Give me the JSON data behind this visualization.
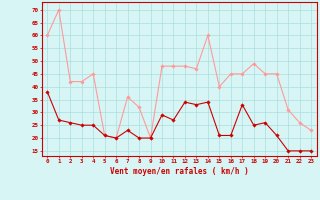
{
  "x": [
    0,
    1,
    2,
    3,
    4,
    5,
    6,
    7,
    8,
    9,
    10,
    11,
    12,
    13,
    14,
    15,
    16,
    17,
    18,
    19,
    20,
    21,
    22,
    23
  ],
  "rafales": [
    60,
    70,
    42,
    42,
    45,
    21,
    20,
    36,
    32,
    20,
    48,
    48,
    48,
    47,
    60,
    40,
    45,
    45,
    49,
    45,
    45,
    31,
    26,
    23
  ],
  "moyen": [
    38,
    27,
    26,
    25,
    25,
    21,
    20,
    23,
    20,
    20,
    29,
    27,
    34,
    33,
    34,
    21,
    21,
    33,
    25,
    26,
    21,
    15,
    15,
    15
  ],
  "bg_color": "#d8f5f5",
  "grid_color": "#aadddd",
  "line_color_rafales": "#ff9999",
  "line_color_moyen": "#cc0000",
  "xlabel": "Vent moyen/en rafales ( km/h )",
  "xlabel_color": "#cc0000",
  "yticks": [
    15,
    20,
    25,
    30,
    35,
    40,
    45,
    50,
    55,
    60,
    65,
    70
  ],
  "ylim": [
    13,
    73
  ],
  "xlim": [
    -0.5,
    23.5
  ]
}
